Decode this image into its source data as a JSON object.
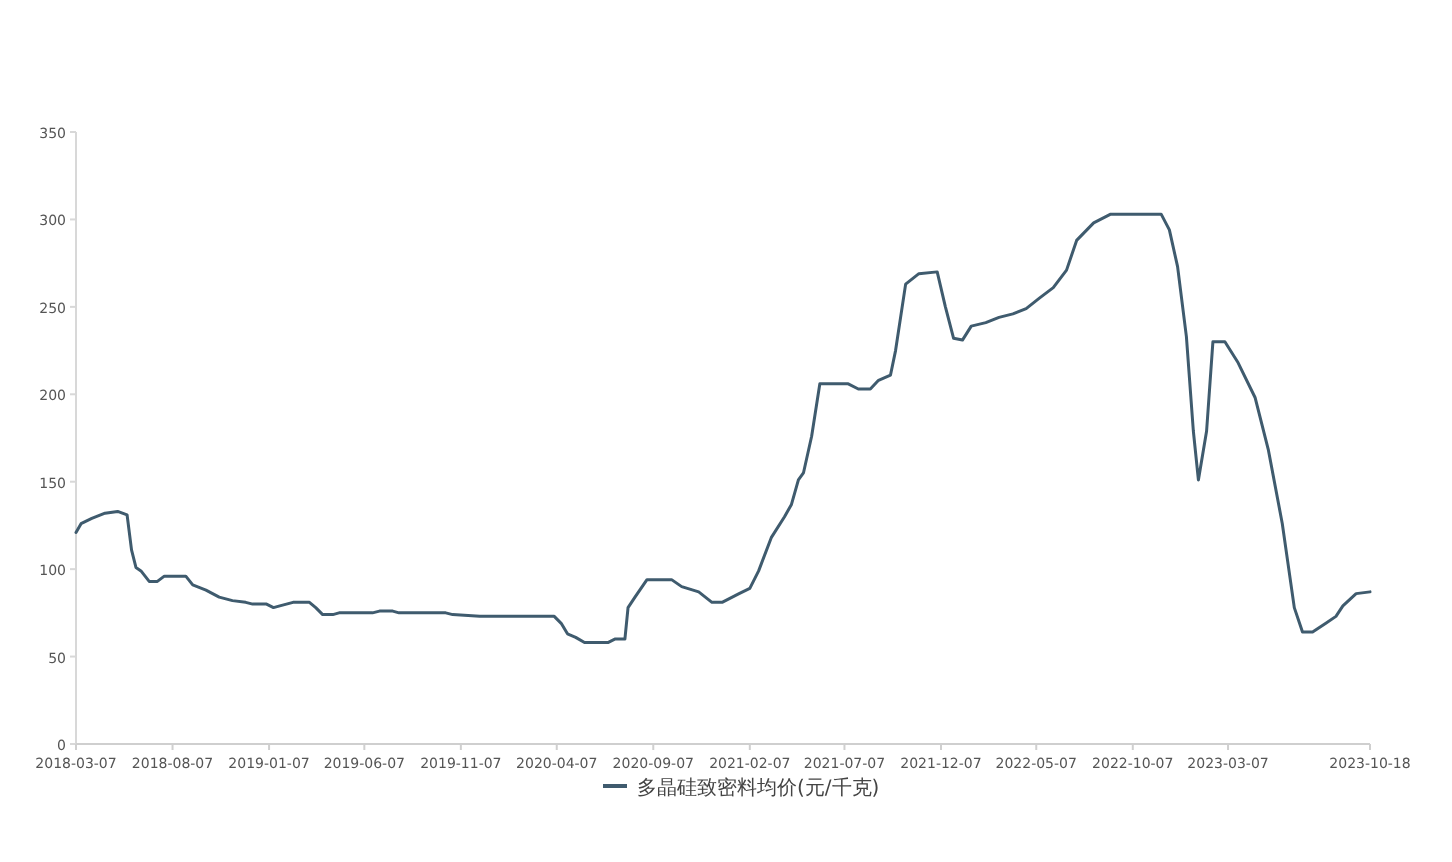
{
  "chart_data": {
    "type": "line",
    "legend": "bottom",
    "grid": false,
    "xlim": [
      "2018-03-07",
      "2023-10-18"
    ],
    "xticks": [
      "2018-03-07",
      "2018-08-07",
      "2019-01-07",
      "2019-06-07",
      "2019-11-07",
      "2020-04-07",
      "2020-09-07",
      "2021-02-07",
      "2021-07-07",
      "2021-12-07",
      "2022-05-07",
      "2022-10-07",
      "2023-03-07",
      "2023-10-18"
    ],
    "ylim": [
      0,
      350
    ],
    "yticks": [
      0,
      50,
      100,
      150,
      200,
      250,
      300,
      350
    ],
    "x": [
      "2018-03-07",
      "2018-03-15",
      "2018-04-01",
      "2018-04-22",
      "2018-05-12",
      "2018-05-27",
      "2018-06-03",
      "2018-06-10",
      "2018-06-18",
      "2018-07-01",
      "2018-07-14",
      "2018-07-25",
      "2018-08-28",
      "2018-09-08",
      "2018-09-29",
      "2018-10-20",
      "2018-11-10",
      "2018-12-01",
      "2018-12-12",
      "2019-01-03",
      "2019-01-14",
      "2019-01-24",
      "2019-02-14",
      "2019-03-12",
      "2019-03-22",
      "2019-04-02",
      "2019-04-18",
      "2019-04-28",
      "2019-06-20",
      "2019-07-01",
      "2019-07-22",
      "2019-08-01",
      "2019-10-14",
      "2019-10-25",
      "2019-12-07",
      "2020-04-03",
      "2020-04-14",
      "2020-04-24",
      "2020-05-07",
      "2020-05-21",
      "2020-06-27",
      "2020-07-08",
      "2020-07-24",
      "2020-07-29",
      "2020-08-09",
      "2020-08-28",
      "2020-10-06",
      "2020-10-22",
      "2020-11-18",
      "2020-12-09",
      "2020-12-25",
      "2021-01-21",
      "2021-02-07",
      "2021-02-21",
      "2021-03-13",
      "2021-04-03",
      "2021-04-14",
      "2021-04-25",
      "2021-05-03",
      "2021-05-16",
      "2021-05-29",
      "2021-07-13",
      "2021-07-29",
      "2021-08-17",
      "2021-08-30",
      "2021-09-18",
      "2021-09-26",
      "2021-10-12",
      "2021-11-02",
      "2021-12-01",
      "2021-12-14",
      "2021-12-27",
      "2022-01-10",
      "2022-01-24",
      "2022-02-16",
      "2022-03-09",
      "2022-03-31",
      "2022-04-21",
      "2022-05-12",
      "2022-06-03",
      "2022-06-24",
      "2022-07-10",
      "2022-08-06",
      "2022-09-02",
      "2022-11-21",
      "2022-12-04",
      "2022-12-17",
      "2022-12-31",
      "2023-01-11",
      "2023-01-19",
      "2023-02-01",
      "2023-02-11",
      "2023-03-02",
      "2023-03-23",
      "2023-04-19",
      "2023-05-10",
      "2023-06-01",
      "2023-06-20",
      "2023-07-03",
      "2023-07-19",
      "2023-08-09",
      "2023-08-25",
      "2023-09-05",
      "2023-09-26",
      "2023-10-18"
    ],
    "series": [
      {
        "name": "多晶硅致密料均价(元/千克)",
        "color": "#3f5b6e",
        "values": [
          121,
          126,
          129,
          132,
          133,
          131,
          111,
          101,
          99,
          93,
          93,
          96,
          96,
          91,
          88,
          84,
          82,
          81,
          80,
          80,
          78,
          79,
          81,
          81,
          78,
          74,
          74,
          75,
          75,
          76,
          76,
          75,
          75,
          74,
          73,
          73,
          69,
          63,
          61,
          58,
          58,
          60,
          60,
          78,
          84,
          94,
          94,
          90,
          87,
          81,
          81,
          86,
          89,
          99,
          118,
          130,
          137,
          151,
          155,
          176,
          206,
          206,
          203,
          203,
          208,
          211,
          225,
          263,
          269,
          270,
          250,
          232,
          231,
          239,
          241,
          244,
          246,
          249,
          255,
          261,
          271,
          288,
          298,
          303,
          303,
          294,
          273,
          233,
          179,
          151,
          179,
          230,
          230,
          218,
          198,
          168,
          126,
          78,
          64,
          64,
          69,
          73,
          79,
          86,
          87
        ]
      }
    ]
  }
}
